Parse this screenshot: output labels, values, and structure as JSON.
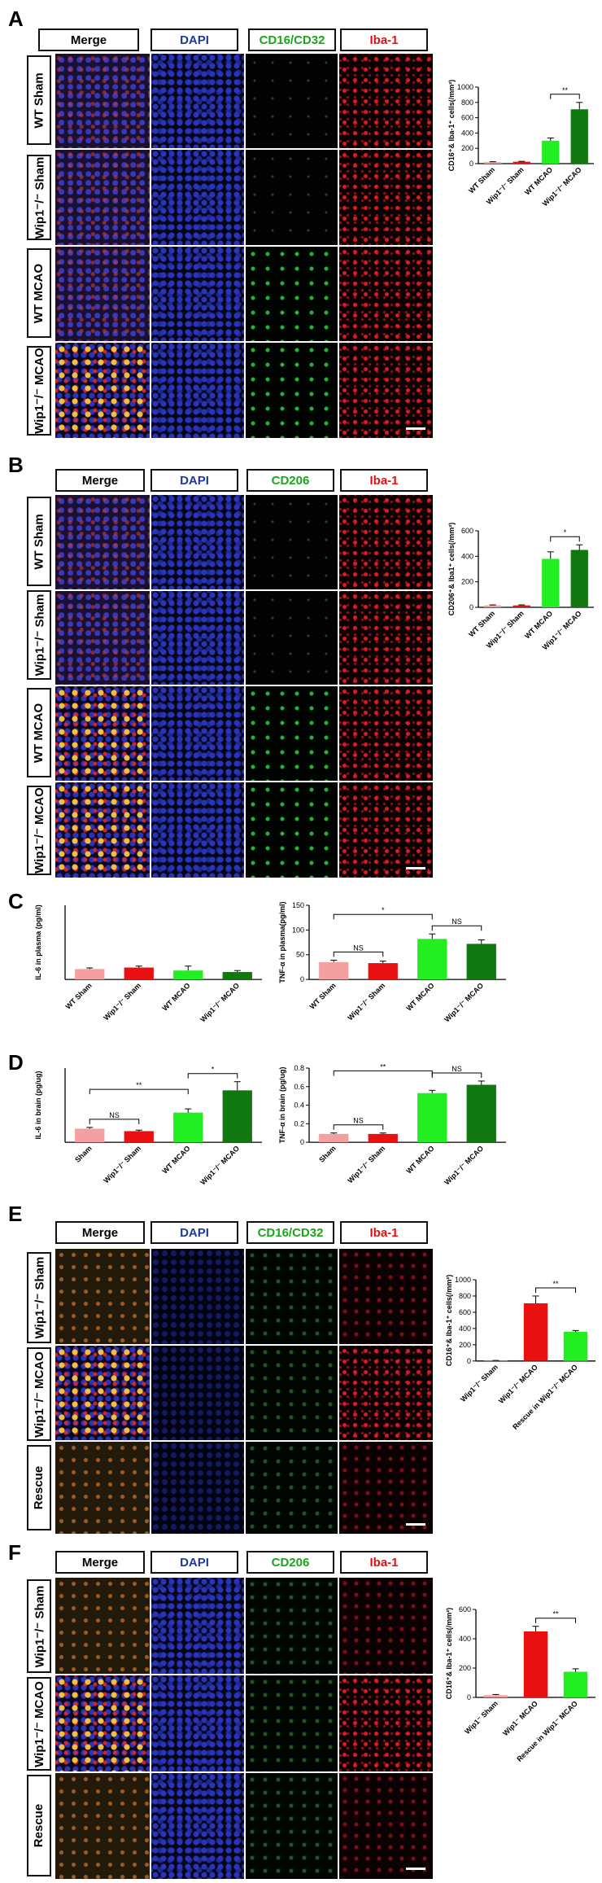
{
  "panels": {
    "A": {
      "label": "A",
      "headers": [
        "Merge",
        "DAPI",
        "CD16/CD32",
        "Iba-1"
      ],
      "rows": [
        "WT Sham",
        "Wip1⁻/⁻ Sham",
        "WT MCAO",
        "Wip1⁻/⁻ MCAO"
      ]
    },
    "B": {
      "label": "B",
      "headers": [
        "Merge",
        "DAPI",
        "CD206",
        "Iba-1"
      ],
      "rows": [
        "WT Sham",
        "Wip1⁻/⁻ Sham",
        "WT MCAO",
        "Wip1⁻/⁻ MCAO"
      ]
    },
    "C": {
      "label": "C"
    },
    "D": {
      "label": "D"
    },
    "E": {
      "label": "E",
      "headers": [
        "Merge",
        "DAPI",
        "CD16/CD32",
        "Iba-1"
      ],
      "rows": [
        "Wip1⁻/⁻ Sham",
        "Wip1⁻/⁻ MCAO",
        "Rescue"
      ]
    },
    "F": {
      "label": "F",
      "headers": [
        "Merge",
        "DAPI",
        "CD206",
        "Iba-1"
      ],
      "rows": [
        "Wip1⁻/⁻ Sham",
        "Wip1⁻/⁻ MCAO",
        "Rescue"
      ]
    }
  },
  "header_colors": {
    "Merge": "#000000",
    "DAPI": "#1f3a93",
    "green": "#1aa51a",
    "Iba-1": "#e01010"
  },
  "chart_data": [
    {
      "id": "A",
      "type": "bar",
      "categories": [
        "WT Sham",
        "Wip1⁻/⁻ Sham",
        "WT MCAO",
        "Wip1⁻/⁻ MCAO"
      ],
      "values": [
        20,
        25,
        300,
        710
      ],
      "errors": [
        5,
        5,
        35,
        90
      ],
      "colors": [
        "#f4a0a0",
        "#e81010",
        "#22ee22",
        "#117711"
      ],
      "ylabel": "CD16⁺& Iba-1⁺ cells(/mm²)",
      "ylim": [
        0,
        1000
      ],
      "yticks": [
        0,
        200,
        400,
        600,
        800,
        1000
      ],
      "brackets": [
        {
          "from": 2,
          "to": 3,
          "text": "**"
        }
      ]
    },
    {
      "id": "B",
      "type": "bar",
      "categories": [
        "WT Sham",
        "Wip1⁻/⁻ Sham",
        "WT MCAO",
        "Wip1⁻/⁻ MCAO"
      ],
      "values": [
        15,
        15,
        380,
        450
      ],
      "errors": [
        4,
        4,
        55,
        40
      ],
      "colors": [
        "#f4a0a0",
        "#e81010",
        "#22ee22",
        "#117711"
      ],
      "ylabel": "CD206⁺& Iba1⁺ cells(/mm²)",
      "ylim": [
        0,
        600
      ],
      "yticks": [
        0,
        200,
        400,
        600
      ],
      "brackets": [
        {
          "from": 2,
          "to": 3,
          "text": "*"
        }
      ]
    },
    {
      "id": "C1",
      "type": "bar",
      "categories": [
        "WT Sham",
        "Wip1⁻/⁻ Sham",
        "WT MCAO",
        "Wip1⁻/⁻ MCAO"
      ],
      "values": [
        14,
        16,
        12,
        10
      ],
      "errors": [
        1.5,
        2,
        6,
        2
      ],
      "colors": [
        "#f4a0a0",
        "#e81010",
        "#22ee22",
        "#117711"
      ],
      "ylabel": "IL-6 in plasma (pg/ml)",
      "ylim": [
        0,
        100
      ],
      "yticks": [],
      "brackets": []
    },
    {
      "id": "C2",
      "type": "bar",
      "categories": [
        "WT Sham",
        "Wip1⁻/⁻ Sham",
        "WT MCAO",
        "Wip1⁻/⁻ MCAO"
      ],
      "values": [
        35,
        33,
        82,
        72
      ],
      "errors": [
        4,
        4,
        10,
        8
      ],
      "colors": [
        "#f4a0a0",
        "#e81010",
        "#22ee22",
        "#117711"
      ],
      "ylabel": "TNF-α in plasma(pg/ml)",
      "ylim": [
        0,
        150
      ],
      "yticks": [
        0,
        50,
        100,
        150
      ],
      "brackets": [
        {
          "from": 0,
          "to": 1,
          "text": "NS"
        },
        {
          "from": 2,
          "to": 3,
          "text": "NS"
        },
        {
          "from": 0,
          "to": 2,
          "text": "*"
        }
      ]
    },
    {
      "id": "D1",
      "type": "bar",
      "categories": [
        "Sham",
        "Wip1⁻/⁻ Sham",
        "WT MCAO",
        "Wip1⁻/⁻ MCAO"
      ],
      "values": [
        0.055,
        0.045,
        0.12,
        0.21
      ],
      "errors": [
        0.005,
        0.004,
        0.015,
        0.035
      ],
      "colors": [
        "#f4a0a0",
        "#e81010",
        "#22ee22",
        "#117711"
      ],
      "ylabel": "IL-6 in brain (pg/ug)",
      "ylim": [
        0,
        0.3
      ],
      "yticks": [],
      "brackets": [
        {
          "from": 0,
          "to": 1,
          "text": "NS"
        },
        {
          "from": 2,
          "to": 3,
          "text": "*"
        },
        {
          "from": 0,
          "to": 2,
          "text": "**"
        }
      ]
    },
    {
      "id": "D2",
      "type": "bar",
      "categories": [
        "Sham",
        "Wip1⁻/⁻ Sham",
        "WT MCAO",
        "Wip1⁻/⁻ MCAO"
      ],
      "values": [
        0.09,
        0.09,
        0.53,
        0.62
      ],
      "errors": [
        0.01,
        0.01,
        0.03,
        0.04
      ],
      "colors": [
        "#f4a0a0",
        "#e81010",
        "#22ee22",
        "#117711"
      ],
      "ylabel": "TNF-α in brain (pg/ug)",
      "ylim": [
        0,
        0.8
      ],
      "yticks": [
        0,
        0.2,
        0.4,
        0.6,
        0.8
      ],
      "brackets": [
        {
          "from": 0,
          "to": 1,
          "text": "NS"
        },
        {
          "from": 2,
          "to": 3,
          "text": "NS"
        },
        {
          "from": 0,
          "to": 2,
          "text": "**"
        }
      ]
    },
    {
      "id": "E",
      "type": "bar",
      "categories": [
        "Wip1⁻/⁻ Sham",
        "Wip1⁻/⁻ MCAO",
        "Rescue in Wip1⁻/⁻ MCAO"
      ],
      "values": [
        5,
        710,
        360
      ],
      "errors": [
        2,
        90,
        15
      ],
      "colors": [
        "#f4a0a0",
        "#e81010",
        "#22ee22"
      ],
      "ylabel": "CD16⁺& Iba-1⁺ cells(/mm²)",
      "ylim": [
        0,
        1000
      ],
      "yticks": [
        0,
        200,
        400,
        600,
        800,
        1000
      ],
      "brackets": [
        {
          "from": 1,
          "to": 2,
          "text": "**"
        }
      ]
    },
    {
      "id": "F",
      "type": "bar",
      "categories": [
        "Wip1⁻ Sham",
        "Wip1⁻ MCAO",
        "Rescue in Wip1⁻ MCAO"
      ],
      "values": [
        15,
        450,
        175
      ],
      "errors": [
        5,
        35,
        20
      ],
      "colors": [
        "#f4a0a0",
        "#e81010",
        "#22ee22"
      ],
      "ylabel": "CD16⁺& Iba-1⁺ cells(/mm²)",
      "ylim": [
        0,
        600
      ],
      "yticks": [
        0,
        200,
        400,
        600
      ],
      "brackets": [
        {
          "from": 1,
          "to": 2,
          "text": "**"
        }
      ]
    }
  ]
}
